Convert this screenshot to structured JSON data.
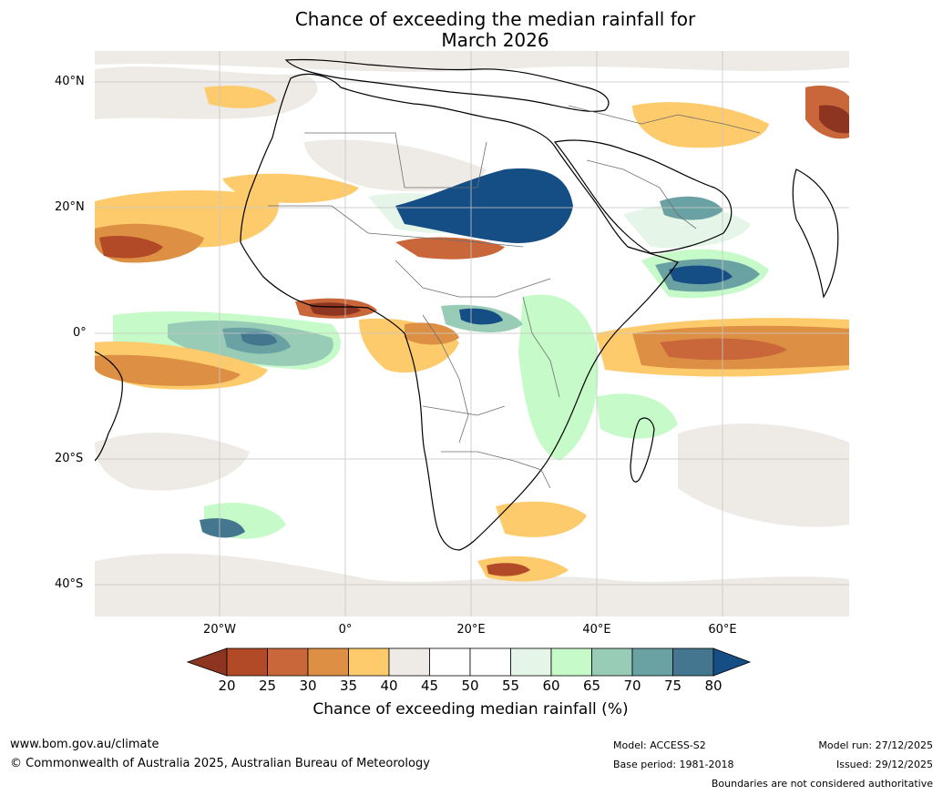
{
  "title_line1": "Chance of exceeding the median rainfall for",
  "title_line2": "March 2026",
  "lat_labels": [
    "40°N",
    "20°N",
    "0°",
    "20°S",
    "40°S"
  ],
  "lon_labels": [
    "20°W",
    "0°",
    "20°E",
    "40°E",
    "60°E"
  ],
  "colorbar": {
    "label": "Chance of exceeding median rainfall (%)",
    "ticks": [
      "20",
      "25",
      "30",
      "35",
      "40",
      "45",
      "50",
      "55",
      "60",
      "65",
      "70",
      "75",
      "80"
    ],
    "low_color": "#8e3522",
    "high_color": "#154e84",
    "colors": [
      "#b24a28",
      "#c9673a",
      "#dd9044",
      "#fdcb6b",
      "#eeebe6",
      "#ffffff",
      "#ffffff",
      "#e5f5e7",
      "#c6fbc9",
      "#98ccb6",
      "#6aa1a3",
      "#44778f"
    ]
  },
  "footer": {
    "url": "www.bom.gov.au/climate",
    "copyright": "© Commonwealth of Australia 2025, Australian Bureau of Meteorology",
    "model": "Model: ACCESS-S2",
    "base_period": "Base period: 1981-2018",
    "model_run": "Model run: 27/12/2025",
    "issued": "Issued: 29/12/2025",
    "disclaimer": "Boundaries are not considered authoritative"
  }
}
